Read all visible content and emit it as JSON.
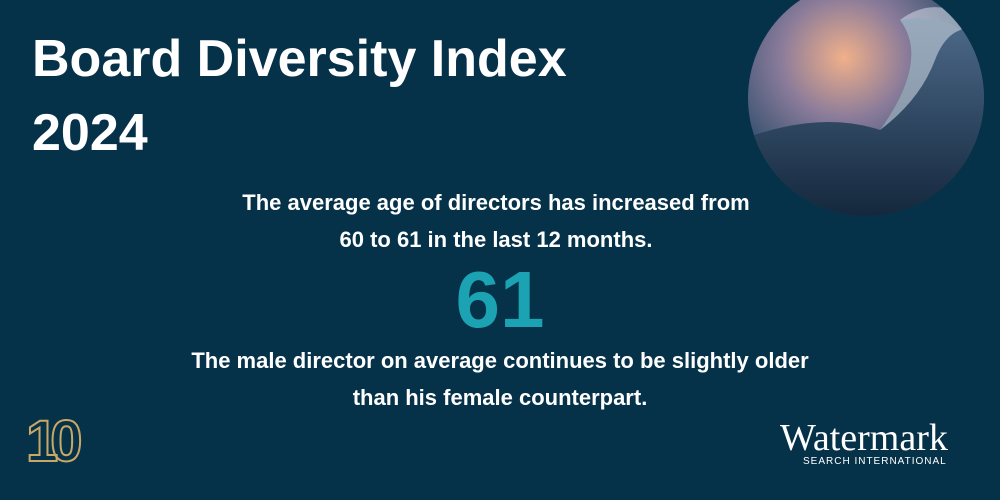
{
  "header": {
    "title_lines": [
      "Board Diversity Index",
      "2024"
    ]
  },
  "statement": {
    "lines": [
      "The average age of directors has increased from",
      "60 to 61 in the last 12 months."
    ]
  },
  "highlight": {
    "value": 61
  },
  "note": {
    "lines": [
      "The male director on average continues to be slightly older",
      "than his female counterpart."
    ]
  },
  "badge": {
    "text": "10"
  },
  "brand": {
    "name": "Watermark",
    "tagline": "SEARCH INTERNATIONAL"
  }
}
